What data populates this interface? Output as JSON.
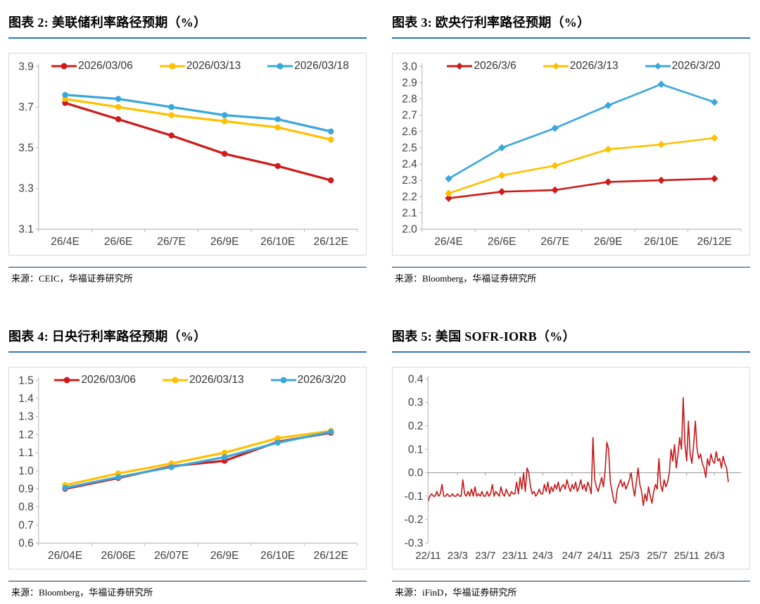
{
  "chart_data": [
    {
      "type": "line",
      "title": "图表 2:  美联储利率路径预期（%）",
      "source": "来源：CEIC，华福证券研究所",
      "categories": [
        "26/4E",
        "26/6E",
        "26/7E",
        "26/9E",
        "26/10E",
        "26/12E"
      ],
      "ylim": [
        3.1,
        3.9
      ],
      "yticks": [
        "3.9",
        "3.7",
        "3.5",
        "3.3",
        "3.1"
      ],
      "legend_position": "top",
      "grid": "off",
      "series": [
        {
          "name": "2026/03/06",
          "color": "#CE1B1B",
          "marker": "circle",
          "values": [
            3.72,
            3.64,
            3.56,
            3.47,
            3.41,
            3.34
          ]
        },
        {
          "name": "2026/03/13",
          "color": "#FFC000",
          "marker": "circle",
          "values": [
            3.74,
            3.7,
            3.66,
            3.63,
            3.6,
            3.54
          ]
        },
        {
          "name": "2026/03/18",
          "color": "#3AA7DB",
          "marker": "circle",
          "values": [
            3.76,
            3.74,
            3.7,
            3.66,
            3.64,
            3.58
          ]
        }
      ]
    },
    {
      "type": "line",
      "title": "图表 3:  欧央行利率路径预期（%）",
      "source": "来源：Bloomberg，华福证券研究所",
      "categories": [
        "26/4E",
        "26/6E",
        "26/7E",
        "26/9E",
        "26/10E",
        "26/12E"
      ],
      "ylim": [
        2.0,
        3.0
      ],
      "yticks": [
        "3.0",
        "2.9",
        "2.8",
        "2.7",
        "2.6",
        "2.5",
        "2.4",
        "2.3",
        "2.2",
        "2.1",
        "2.0"
      ],
      "legend_position": "top",
      "grid": "off",
      "series": [
        {
          "name": "2026/3/6",
          "color": "#CE1B1B",
          "marker": "diamond",
          "values": [
            2.19,
            2.23,
            2.24,
            2.29,
            2.3,
            2.31
          ]
        },
        {
          "name": "2026/3/13",
          "color": "#FFC000",
          "marker": "diamond",
          "values": [
            2.22,
            2.33,
            2.39,
            2.49,
            2.52,
            2.56
          ]
        },
        {
          "name": "2026/3/20",
          "color": "#3AA7DB",
          "marker": "diamond",
          "values": [
            2.31,
            2.5,
            2.62,
            2.76,
            2.89,
            2.78
          ]
        }
      ]
    },
    {
      "type": "line",
      "title": "图表 4:  日央行利率路径预期（%）",
      "source": "来源：Bloomberg，华福证券研究所",
      "categories": [
        "26/04E",
        "26/06E",
        "26/07E",
        "26/9E",
        "26/10E",
        "26/12E"
      ],
      "ylim": [
        0.6,
        1.5
      ],
      "yticks": [
        "1.5",
        "1.4",
        "1.3",
        "1.2",
        "1.1",
        "1.0",
        "0.9",
        "0.8",
        "0.7",
        "0.6"
      ],
      "legend_position": "top",
      "grid": "off",
      "series": [
        {
          "name": "2026/03/06",
          "color": "#CE1B1B",
          "marker": "circle",
          "values": [
            0.9,
            0.96,
            1.025,
            1.055,
            1.16,
            1.21
          ]
        },
        {
          "name": "2026/03/13",
          "color": "#FFC000",
          "marker": "circle",
          "values": [
            0.92,
            0.985,
            1.04,
            1.1,
            1.18,
            1.22
          ]
        },
        {
          "name": "2026/3/20",
          "color": "#3AA7DB",
          "marker": "circle",
          "values": [
            0.905,
            0.965,
            1.02,
            1.075,
            1.155,
            1.215
          ]
        }
      ]
    },
    {
      "type": "line",
      "subtype": "timeseries",
      "title": "图表 5:  美国 SOFR-IORB（%）",
      "source": "来源：iFinD，华福证券研究所",
      "x_labels": [
        "22/11",
        "23/3",
        "23/7",
        "23/11",
        "24/3",
        "24/7",
        "24/11",
        "25/3",
        "25/7",
        "25/11",
        "26/3"
      ],
      "label_idx": [
        0,
        17,
        33,
        50,
        66,
        83,
        99,
        116,
        132,
        149,
        165
      ],
      "ylim": [
        -0.3,
        0.4
      ],
      "yticks": [
        "0.4",
        "0.3",
        "0.2",
        "0.1",
        "0.0",
        "-0.1",
        "-0.2",
        "-0.3"
      ],
      "zero_line": true,
      "legend_position": "none",
      "grid": "off",
      "series": [
        {
          "name": "SOFR-IORB",
          "color": "#C51718",
          "marker": "none",
          "values": [
            -0.12,
            -0.1,
            -0.09,
            -0.1,
            -0.1,
            -0.08,
            -0.1,
            -0.09,
            -0.05,
            -0.1,
            -0.1,
            -0.09,
            -0.1,
            -0.1,
            -0.09,
            -0.1,
            -0.1,
            -0.09,
            -0.1,
            -0.1,
            -0.03,
            -0.09,
            -0.1,
            -0.08,
            -0.1,
            -0.07,
            -0.1,
            -0.06,
            -0.1,
            -0.09,
            -0.1,
            -0.08,
            -0.1,
            -0.1,
            -0.08,
            -0.1,
            -0.09,
            -0.05,
            -0.1,
            -0.08,
            -0.09,
            -0.1,
            -0.06,
            -0.09,
            -0.1,
            -0.07,
            -0.09,
            -0.1,
            -0.08,
            -0.09,
            -0.09,
            -0.04,
            -0.09,
            -0.02,
            -0.07,
            0.0,
            -0.08,
            0.02,
            0.0,
            -0.06,
            -0.09,
            -0.08,
            -0.1,
            -0.09,
            -0.07,
            -0.09,
            -0.09,
            -0.05,
            -0.08,
            -0.04,
            -0.09,
            -0.06,
            -0.08,
            -0.05,
            -0.07,
            -0.04,
            -0.08,
            -0.06,
            -0.05,
            -0.07,
            -0.03,
            -0.06,
            -0.08,
            -0.05,
            -0.07,
            -0.04,
            -0.08,
            -0.06,
            -0.03,
            -0.07,
            -0.05,
            -0.08,
            -0.04,
            -0.06,
            -0.09,
            0.15,
            -0.03,
            -0.06,
            -0.08,
            -0.05,
            -0.02,
            -0.06,
            0.01,
            0.13,
            0.1,
            -0.04,
            -0.08,
            -0.12,
            -0.13,
            -0.07,
            -0.05,
            -0.03,
            -0.06,
            -0.04,
            -0.07,
            -0.05,
            -0.03,
            0.0,
            -0.06,
            -0.1,
            -0.04,
            0.02,
            -0.05,
            -0.08,
            -0.14,
            -0.09,
            -0.12,
            -0.06,
            -0.1,
            -0.13,
            -0.08,
            -0.05,
            -0.07,
            0.06,
            -0.05,
            -0.08,
            -0.03,
            -0.06,
            -0.04,
            0.0,
            0.1,
            0.05,
            0.12,
            0.02,
            0.08,
            0.15,
            0.1,
            0.32,
            0.12,
            0.05,
            0.22,
            0.08,
            0.04,
            0.12,
            0.22,
            0.1,
            0.06,
            0.08,
            0.04,
            0.02,
            -0.02,
            0.06,
            0.03,
            0.08,
            0.05,
            0.04,
            0.09,
            0.05,
            0.06,
            0.02,
            0.07,
            0.04,
            0.02,
            -0.04
          ]
        }
      ]
    }
  ]
}
